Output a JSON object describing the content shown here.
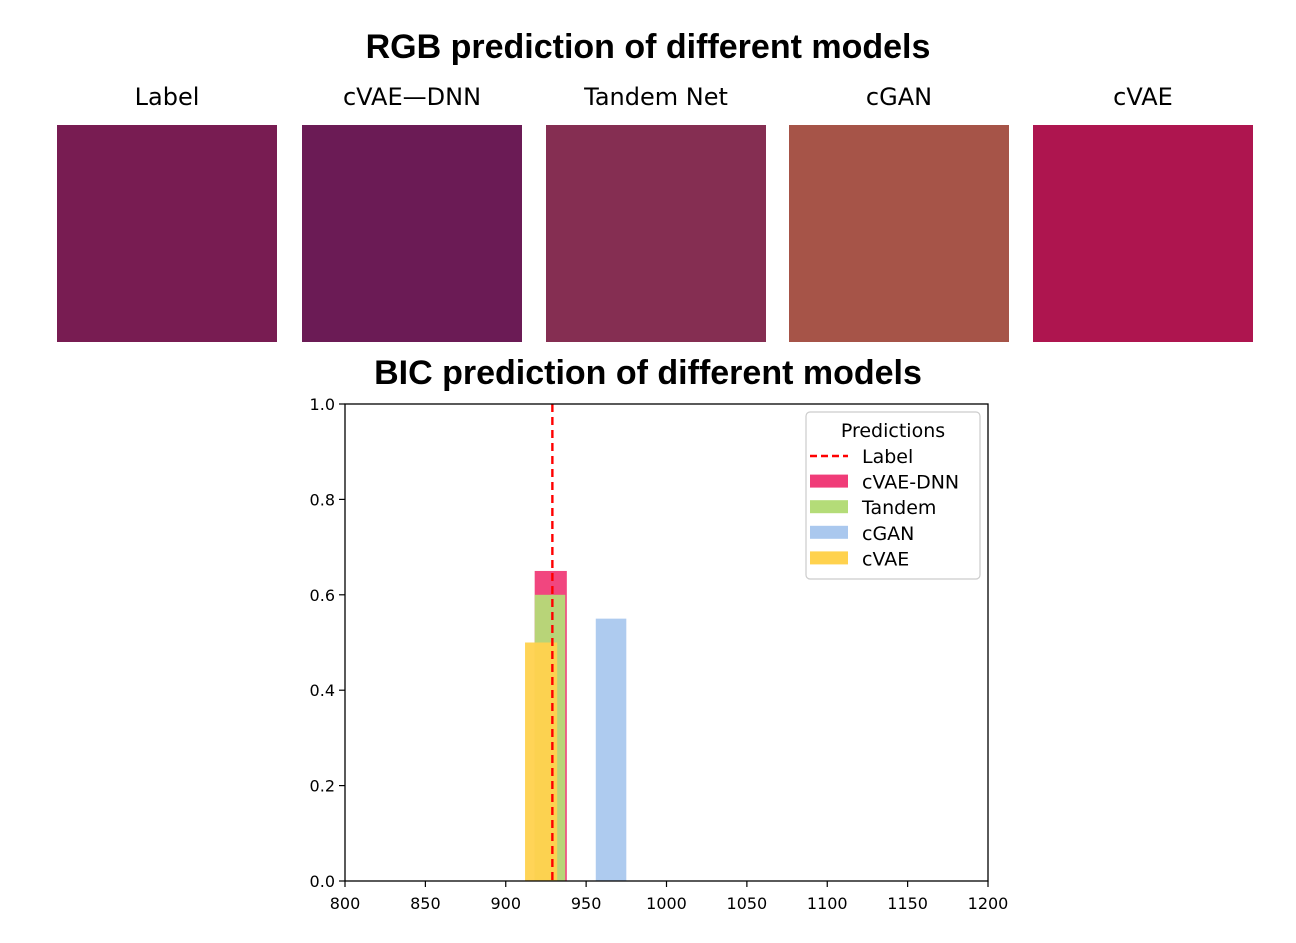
{
  "rgb_section": {
    "title": "RGB prediction of different models",
    "swatches": [
      {
        "label": "Label",
        "color": "#781c52"
      },
      {
        "label": "cVAE—DNN",
        "color": "#6b1b55"
      },
      {
        "label": "Tandem Net",
        "color": "#852e52"
      },
      {
        "label": "cGAN",
        "color": "#a65448"
      },
      {
        "label": "cVAE",
        "color": "#ae154f"
      }
    ]
  },
  "chart_data": {
    "type": "bar",
    "title": "BIC prediction of different models",
    "xlabel": "",
    "ylabel": "",
    "xlim": [
      800,
      1200
    ],
    "ylim": [
      0,
      1.0
    ],
    "x_ticks": [
      800,
      850,
      900,
      950,
      1000,
      1050,
      1100,
      1150,
      1200
    ],
    "y_ticks": [
      0.0,
      0.2,
      0.4,
      0.6,
      0.8,
      1.0
    ],
    "x_tick_labels": [
      "800",
      "850",
      "900",
      "950",
      "1000",
      "1050",
      "1100",
      "1150",
      "1200"
    ],
    "y_tick_labels": [
      "0.0",
      "0.2",
      "0.4",
      "0.6",
      "0.8",
      "1.0"
    ],
    "grid": false,
    "legend": {
      "title": "Predictions",
      "placement": "top-right"
    },
    "label_line": {
      "name": "Label",
      "x": 929,
      "color": "#ff0000",
      "style": "dashed"
    },
    "series": [
      {
        "name": "cVAE-DNN",
        "color": "#f03c78",
        "bars": [
          {
            "x0": 918,
            "x1": 938,
            "value": 0.65
          }
        ]
      },
      {
        "name": "Tandem",
        "color": "#b4dc78",
        "bars": [
          {
            "x0": 918,
            "x1": 937,
            "value": 0.6
          }
        ]
      },
      {
        "name": "cGAN",
        "color": "#aac8ee",
        "bars": [
          {
            "x0": 956,
            "x1": 975,
            "value": 0.55
          }
        ]
      },
      {
        "name": "cVAE",
        "color": "#ffd24e",
        "bars": [
          {
            "x0": 912,
            "x1": 932,
            "value": 0.5
          }
        ]
      }
    ]
  }
}
